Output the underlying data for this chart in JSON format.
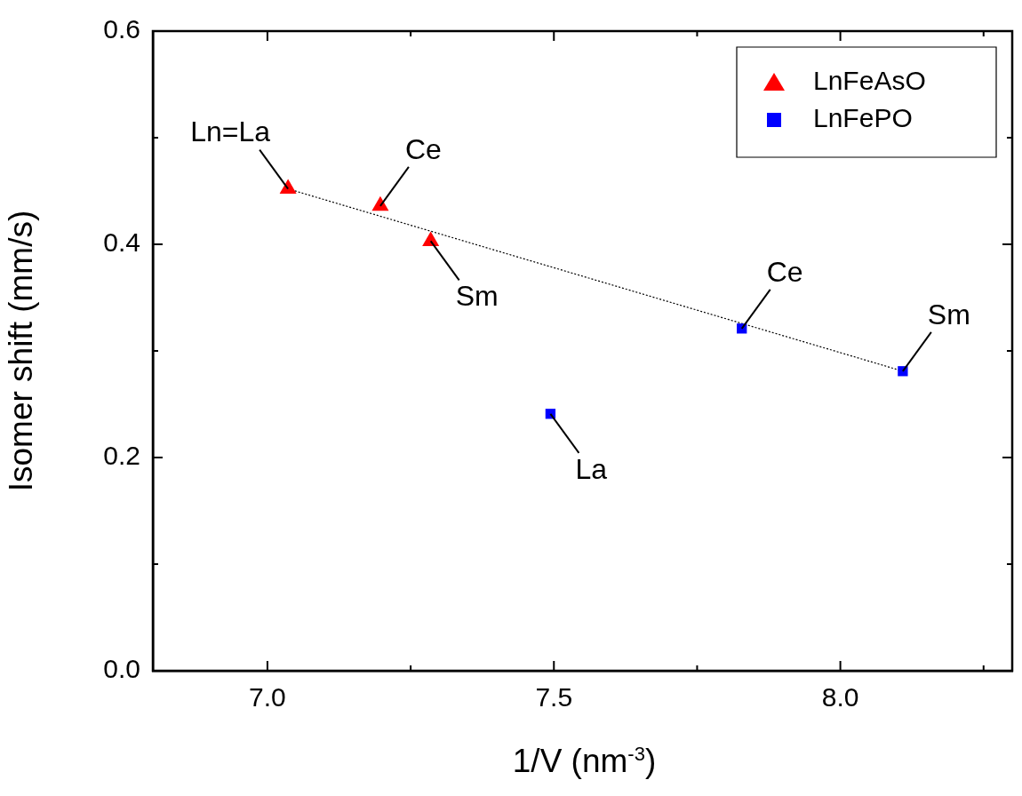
{
  "chart_data": {
    "type": "scatter",
    "xlabel": "1/V (nm$^{-3}$)",
    "ylabel": "Isomer shift (mm/s)",
    "xlim": [
      6.8,
      8.3
    ],
    "ylim": [
      0,
      0.6
    ],
    "xticks": [
      {
        "value": 7,
        "label": "7.0"
      },
      {
        "value": 7.25,
        "label": null
      },
      {
        "value": 7.5,
        "label": "7.5"
      },
      {
        "value": 7.75,
        "label": null
      },
      {
        "value": 8,
        "label": "8.0"
      },
      {
        "value": 8.25,
        "label": null
      }
    ],
    "yticks": [
      {
        "value": 0,
        "label": "0.0"
      },
      {
        "value": 0.1,
        "label": null
      },
      {
        "value": 0.2,
        "label": "0.2"
      },
      {
        "value": 0.3,
        "label": null
      },
      {
        "value": 0.4,
        "label": "0.4"
      },
      {
        "value": 0.5,
        "label": null
      },
      {
        "value": 0.6,
        "label": "0.6"
      }
    ],
    "grid": false,
    "legend": "top right",
    "series": [
      {
        "name": "LnFeAsO",
        "color": "#ff0000",
        "marker": "triangle",
        "x": [
          7.036,
          7.197,
          7.285
        ],
        "values": [
          0.452,
          0.436,
          0.403
        ]
      },
      {
        "name": "LnFePO",
        "color": "#0000ff",
        "marker": "square",
        "x": [
          7.494,
          7.828,
          8.109
        ],
        "values": [
          0.241,
          0.321,
          0.281
        ]
      },
      {
        "type": "line",
        "color": "#000000",
        "line_style": "dotted",
        "marker": "none",
        "x": [
          7.036,
          8.109
        ],
        "values": [
          0.452,
          0.281
        ]
      }
    ],
    "annotations": [
      {
        "text": "Ln=La",
        "x": 7.036,
        "y": 0.452
      },
      {
        "text": "Ce",
        "x": 7.197,
        "y": 0.436
      },
      {
        "text": "Sm",
        "x": 7.285,
        "y": 0.403
      },
      {
        "text": "La",
        "x": 7.494,
        "y": 0.241
      },
      {
        "text": "Ce",
        "x": 7.828,
        "y": 0.321
      },
      {
        "text": "Sm",
        "x": 8.109,
        "y": 0.281
      }
    ]
  }
}
